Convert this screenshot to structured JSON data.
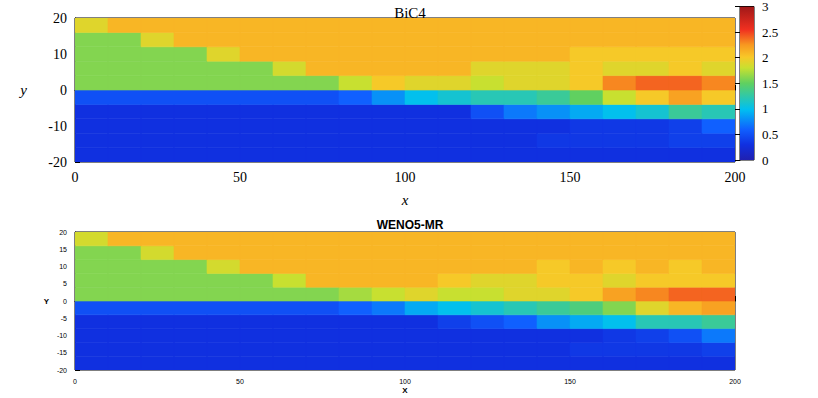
{
  "chart_data": [
    {
      "type": "heatmap",
      "title": "BiC4",
      "xlabel": "x",
      "ylabel": "y",
      "xlim": [
        0,
        200
      ],
      "ylim": [
        -20,
        20
      ],
      "xticks": [
        0,
        50,
        100,
        150,
        200
      ],
      "yticks": [
        -20,
        -10,
        0,
        10,
        20
      ],
      "x_edges": [
        0,
        10,
        20,
        30,
        40,
        50,
        60,
        70,
        80,
        90,
        100,
        110,
        120,
        130,
        140,
        150,
        160,
        170,
        180,
        190,
        200
      ],
      "y_edges": [
        -20,
        -16,
        -12,
        -8,
        -4,
        0,
        4,
        8,
        12,
        16,
        20
      ],
      "cells": [
        [
          0.3,
          0.3,
          0.3,
          0.3,
          0.3,
          0.3,
          0.3,
          0.3,
          0.3,
          0.3,
          0.3,
          0.3,
          0.3,
          0.3,
          0.3,
          0.3,
          0.3,
          0.3,
          0.3,
          0.3
        ],
        [
          0.3,
          0.3,
          0.3,
          0.3,
          0.3,
          0.3,
          0.3,
          0.3,
          0.3,
          0.3,
          0.3,
          0.3,
          0.3,
          0.3,
          0.35,
          0.35,
          0.35,
          0.35,
          0.4,
          0.4
        ],
        [
          0.3,
          0.3,
          0.3,
          0.3,
          0.3,
          0.3,
          0.3,
          0.3,
          0.3,
          0.3,
          0.3,
          0.3,
          0.3,
          0.3,
          0.3,
          0.35,
          0.35,
          0.35,
          0.4,
          0.6
        ],
        [
          0.3,
          0.3,
          0.3,
          0.3,
          0.3,
          0.3,
          0.3,
          0.3,
          0.3,
          0.3,
          0.3,
          0.3,
          0.5,
          0.7,
          0.8,
          0.9,
          1.0,
          1.1,
          1.3,
          1.2
        ],
        [
          0.5,
          0.5,
          0.5,
          0.5,
          0.5,
          0.5,
          0.5,
          0.5,
          0.6,
          0.8,
          1.0,
          1.1,
          1.2,
          1.2,
          1.3,
          1.5,
          1.8,
          2.0,
          2.2,
          2.0
        ],
        [
          1.6,
          1.6,
          1.6,
          1.6,
          1.6,
          1.6,
          1.6,
          1.6,
          1.8,
          2.0,
          1.9,
          1.9,
          1.8,
          1.9,
          1.9,
          2.0,
          2.3,
          2.4,
          2.4,
          2.3
        ],
        [
          1.6,
          1.6,
          1.6,
          1.6,
          1.6,
          1.6,
          1.85,
          2.1,
          2.1,
          2.1,
          2.1,
          2.1,
          1.9,
          1.9,
          1.9,
          2.0,
          1.9,
          1.9,
          2.0,
          1.9
        ],
        [
          1.6,
          1.6,
          1.6,
          1.6,
          1.9,
          2.1,
          2.1,
          2.1,
          2.1,
          2.1,
          2.1,
          2.1,
          2.1,
          2.1,
          2.1,
          2.0,
          2.0,
          2.0,
          2.0,
          2.0
        ],
        [
          1.6,
          1.6,
          1.9,
          2.1,
          2.1,
          2.1,
          2.1,
          2.1,
          2.1,
          2.1,
          2.1,
          2.1,
          2.1,
          2.1,
          2.1,
          2.1,
          2.1,
          2.1,
          2.1,
          2.1
        ],
        [
          1.9,
          2.1,
          2.1,
          2.1,
          2.1,
          2.1,
          2.1,
          2.1,
          2.1,
          2.1,
          2.1,
          2.1,
          2.1,
          2.1,
          2.1,
          2.1,
          2.1,
          2.1,
          2.1,
          2.1
        ]
      ],
      "colorbar_lim": [
        0,
        3
      ],
      "colorbar_ticks": [
        0,
        0.5,
        1,
        1.5,
        2,
        2.5,
        3
      ]
    },
    {
      "type": "heatmap",
      "title": "WENO5-MR",
      "xlabel": "X",
      "ylabel": "Y",
      "xlim": [
        0,
        200
      ],
      "ylim": [
        -20,
        20
      ],
      "xticks": [
        0,
        50,
        100,
        150,
        200
      ],
      "yticks": [
        -20,
        -15,
        -10,
        -5,
        0,
        5,
        10,
        15,
        20
      ],
      "x_edges": [
        0,
        10,
        20,
        30,
        40,
        50,
        60,
        70,
        80,
        90,
        100,
        110,
        120,
        130,
        140,
        150,
        160,
        170,
        180,
        190,
        200
      ],
      "y_edges": [
        -20,
        -16,
        -12,
        -8,
        -4,
        0,
        4,
        8,
        12,
        16,
        20
      ],
      "cells": [
        [
          0.3,
          0.3,
          0.3,
          0.3,
          0.3,
          0.3,
          0.3,
          0.3,
          0.3,
          0.3,
          0.3,
          0.3,
          0.3,
          0.3,
          0.3,
          0.3,
          0.3,
          0.3,
          0.3,
          0.3
        ],
        [
          0.3,
          0.3,
          0.3,
          0.3,
          0.3,
          0.3,
          0.3,
          0.3,
          0.3,
          0.3,
          0.3,
          0.3,
          0.3,
          0.3,
          0.3,
          0.35,
          0.35,
          0.35,
          0.35,
          0.4
        ],
        [
          0.3,
          0.3,
          0.3,
          0.3,
          0.3,
          0.3,
          0.3,
          0.3,
          0.3,
          0.3,
          0.3,
          0.3,
          0.3,
          0.3,
          0.3,
          0.3,
          0.35,
          0.4,
          0.5,
          0.7
        ],
        [
          0.3,
          0.3,
          0.3,
          0.3,
          0.3,
          0.3,
          0.3,
          0.3,
          0.3,
          0.3,
          0.3,
          0.4,
          0.5,
          0.6,
          0.8,
          0.9,
          1.0,
          1.2,
          1.2,
          1.3
        ],
        [
          0.5,
          0.5,
          0.5,
          0.5,
          0.5,
          0.5,
          0.5,
          0.5,
          0.6,
          0.7,
          0.9,
          1.0,
          1.1,
          1.2,
          1.3,
          1.4,
          1.6,
          1.9,
          2.1,
          2.2
        ],
        [
          1.6,
          1.6,
          1.6,
          1.6,
          1.6,
          1.6,
          1.6,
          1.6,
          1.7,
          1.8,
          1.9,
          1.8,
          1.8,
          1.9,
          1.9,
          2.0,
          2.2,
          2.3,
          2.4,
          2.4
        ],
        [
          1.6,
          1.6,
          1.6,
          1.6,
          1.6,
          1.6,
          1.8,
          2.1,
          2.1,
          2.1,
          2.1,
          2.0,
          1.9,
          1.9,
          2.0,
          2.0,
          1.9,
          2.0,
          2.0,
          2.0
        ],
        [
          1.6,
          1.6,
          1.6,
          1.6,
          1.85,
          2.1,
          2.1,
          2.1,
          2.1,
          2.1,
          2.1,
          2.1,
          2.1,
          2.1,
          2.0,
          2.1,
          2.0,
          2.1,
          2.0,
          2.1
        ],
        [
          1.6,
          1.6,
          1.85,
          2.1,
          2.1,
          2.1,
          2.1,
          2.1,
          2.1,
          2.1,
          2.1,
          2.1,
          2.1,
          2.1,
          2.1,
          2.1,
          2.1,
          2.1,
          2.1,
          2.1
        ],
        [
          1.85,
          2.1,
          2.1,
          2.1,
          2.1,
          2.1,
          2.1,
          2.1,
          2.1,
          2.1,
          2.1,
          2.1,
          2.1,
          2.1,
          2.1,
          2.1,
          2.1,
          2.1,
          2.1,
          2.1
        ]
      ]
    }
  ]
}
